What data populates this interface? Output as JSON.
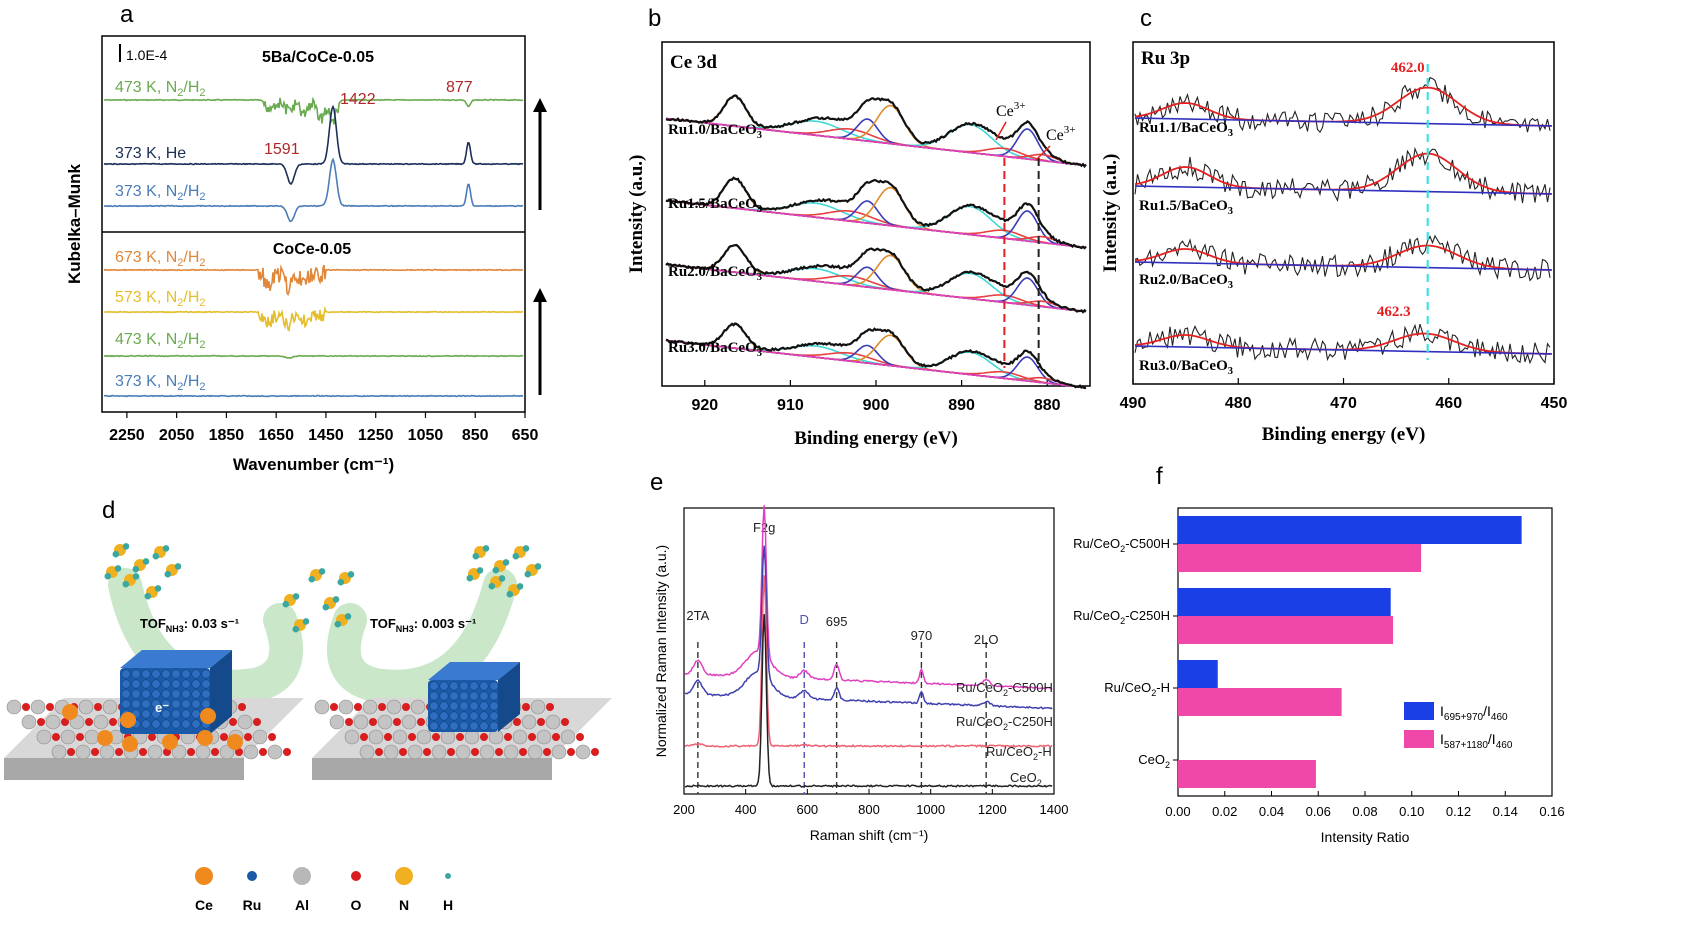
{
  "chart_data": [
    {
      "panel": "a",
      "type": "line",
      "xlabel": "Wavenumber (cm⁻¹)",
      "ylabel": "Kubelka–Munk",
      "xlim": [
        2350,
        650
      ],
      "xticks": [
        2250,
        2050,
        1850,
        1650,
        1450,
        1250,
        1050,
        850,
        650
      ],
      "scale_bar": "1.0E-4",
      "groups": [
        {
          "title": "5Ba/CoCe-0.05",
          "series": [
            {
              "name": "473 K, N₂/H₂",
              "color": "#6aaa50",
              "peaks": [
                [
                  1680,
                  -0.2
                ],
                [
                  1600,
                  -0.35
                ],
                [
                  1540,
                  -0.5
                ],
                [
                  1470,
                  -0.7
                ],
                [
                  1422,
                  -0.8
                ],
                [
                  877,
                  -0.3
                ]
              ]
            },
            {
              "name": "373 K, He",
              "color": "#1c2f57",
              "peaks": [
                [
                  1591,
                  -0.9
                ],
                [
                  1422,
                  2.6
                ],
                [
                  877,
                  1.0
                ]
              ]
            },
            {
              "name": "373 K, N₂/H₂",
              "color": "#4a7db8",
              "peaks": [
                [
                  1591,
                  -0.7
                ],
                [
                  1422,
                  2.1
                ],
                [
                  877,
                  1.0
                ]
              ]
            }
          ],
          "annotations": [
            "1591",
            "1422",
            "877"
          ]
        },
        {
          "title": "CoCe-0.05",
          "series": [
            {
              "name": "673 K, N₂/H₂",
              "color": "#e0873a",
              "peaks": [
                [
                  1680,
                  -0.5
                ],
                [
                  1600,
                  -0.6
                ],
                [
                  1540,
                  -0.5
                ]
              ]
            },
            {
              "name": "573 K, N₂/H₂",
              "color": "#e5be2c",
              "peaks": [
                [
                  1680,
                  -0.3
                ],
                [
                  1600,
                  -0.4
                ],
                [
                  1540,
                  -0.3
                ]
              ]
            },
            {
              "name": "473 K, N₂/H₂",
              "color": "#6aaa50",
              "peaks": [
                [
                  1600,
                  -0.1
                ]
              ]
            },
            {
              "name": "373 K, N₂/H₂",
              "color": "#4a7db8",
              "peaks": []
            }
          ]
        }
      ]
    },
    {
      "panel": "b",
      "type": "line",
      "title": "Ce 3d",
      "xlabel": "Binding energy (eV)",
      "ylabel": "Intensity (a.u.)",
      "xlim": [
        925,
        875
      ],
      "xticks": [
        920,
        910,
        900,
        890,
        880
      ],
      "series": [
        {
          "name": "Ru1.0/BaCeO₃"
        },
        {
          "name": "Ru1.5/BaCeO₃"
        },
        {
          "name": "Ru2.0/BaCeO₃"
        },
        {
          "name": "Ru3.0/BaCeO₃"
        }
      ],
      "peaks_ev": [
        916.5,
        907,
        901,
        898.3,
        888.7,
        882.3
      ],
      "annotations": [
        "Ce³⁺",
        "Ce³⁺"
      ],
      "dashed_lines_ev": [
        885,
        881
      ]
    },
    {
      "panel": "c",
      "type": "line",
      "title": "Ru 3p",
      "xlabel": "Binding energy (eV)",
      "ylabel": "Intensity (a.u.)",
      "xlim": [
        490,
        450
      ],
      "xticks": [
        490,
        480,
        470,
        460,
        450
      ],
      "series": [
        {
          "name": "Ru1.1/BaCeO₃"
        },
        {
          "name": "Ru1.5/BaCeO₃"
        },
        {
          "name": "Ru2.0/BaCeO₃"
        },
        {
          "name": "Ru3.0/BaCeO₃"
        }
      ],
      "annotations": [
        "462.0",
        "462.3"
      ],
      "dashed_line_ev": 462.0
    },
    {
      "panel": "e",
      "type": "line",
      "xlabel": "Raman shift (cm⁻¹)",
      "ylabel": "Normalized Raman Intensity (a.u.)",
      "xlim": [
        200,
        1400
      ],
      "xticks": [
        200,
        400,
        600,
        800,
        1000,
        1200,
        1400
      ],
      "peak_labels": [
        {
          "text": "2TA",
          "x": 245
        },
        {
          "text": "F2g",
          "x": 460
        },
        {
          "text": "D",
          "x": 590
        },
        {
          "text": "695",
          "x": 695
        },
        {
          "text": "970",
          "x": 970
        },
        {
          "text": "2LO",
          "x": 1180
        }
      ],
      "series": [
        {
          "name": "Ru/CeO₂-C500H",
          "color": "#e040c0"
        },
        {
          "name": "Ru/CeO₂-C250H",
          "color": "#4040b0"
        },
        {
          "name": "Ru/CeO₂-H",
          "color": "#f06070"
        },
        {
          "name": "CeO₂",
          "color": "#222222"
        }
      ]
    },
    {
      "panel": "f",
      "type": "bar",
      "orientation": "horizontal",
      "xlabel": "Intensity Ratio",
      "xlim": [
        0,
        0.16
      ],
      "xticks": [
        "0.00",
        "0.02",
        "0.04",
        "0.06",
        "0.08",
        "0.10",
        "0.12",
        "0.14",
        "0.16"
      ],
      "categories": [
        "Ru/CeO₂-C500H",
        "Ru/CeO₂-C250H",
        "Ru/CeO₂-H",
        "CeO₂"
      ],
      "series": [
        {
          "name": "I695+970/I460",
          "color": "#1a3fe6",
          "values": [
            0.147,
            0.091,
            0.017,
            null
          ]
        },
        {
          "name": "I587+1180/I460",
          "color": "#f048a8",
          "values": [
            0.104,
            0.092,
            0.07,
            0.059
          ]
        }
      ],
      "legend": "bottom-right"
    }
  ],
  "panel_d": {
    "label": "d",
    "tof_left": "TOF",
    "tof_left_sub": "NH3",
    "tof_left_value": ": 0.03 s⁻¹",
    "tof_right": "TOF",
    "tof_right_sub": "NH3",
    "tof_right_value": ": 0.003 s⁻¹",
    "electron": "e⁻",
    "legend": [
      {
        "name": "Ce",
        "color": "#f08a1e"
      },
      {
        "name": "Ru",
        "color": "#1a5aa8"
      },
      {
        "name": "Al",
        "color": "#b8b8b8"
      },
      {
        "name": "O",
        "color": "#d81e1e"
      },
      {
        "name": "N",
        "color": "#f0b020"
      },
      {
        "name": "H",
        "color": "#3aa8a0"
      }
    ]
  },
  "panel_labels": [
    "a",
    "b",
    "c",
    "d",
    "e",
    "f"
  ]
}
